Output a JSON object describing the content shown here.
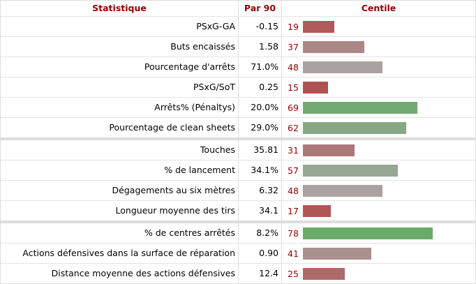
{
  "header": {
    "statistic": "Statistique",
    "per90": "Par 90",
    "percentile": "Centile"
  },
  "groups": [
    {
      "rows": [
        {
          "statistic": "PSxG-GA",
          "per90": "-0.15",
          "percentile": 19
        },
        {
          "statistic": "Buts encaissés",
          "per90": "1.58",
          "percentile": 37
        },
        {
          "statistic": "Pourcentage d'arrêts",
          "per90": "71.0%",
          "percentile": 48
        },
        {
          "statistic": "PSxG/SoT",
          "per90": "0.25",
          "percentile": 15
        },
        {
          "statistic": "Arrêts% (Pénaltys)",
          "per90": "20.0%",
          "percentile": 69
        },
        {
          "statistic": "Pourcentage de clean sheets",
          "per90": "29.0%",
          "percentile": 62
        }
      ]
    },
    {
      "rows": [
        {
          "statistic": "Touches",
          "per90": "35.81",
          "percentile": 31
        },
        {
          "statistic": "% de lancement",
          "per90": "34.1%",
          "percentile": 57
        },
        {
          "statistic": "Dégagements au six mètres",
          "per90": "6.32",
          "percentile": 48
        },
        {
          "statistic": "Longueur moyenne des tirs",
          "per90": "34.1",
          "percentile": 17
        }
      ]
    },
    {
      "rows": [
        {
          "statistic": "% de centres arrêtés",
          "per90": "8.2%",
          "percentile": 78
        },
        {
          "statistic": "Actions défensives dans la surface de réparation",
          "per90": "0.90",
          "percentile": 41
        },
        {
          "statistic": "Distance moyenne des actions défensives",
          "per90": "12.4",
          "percentile": 25
        }
      ]
    }
  ]
}
